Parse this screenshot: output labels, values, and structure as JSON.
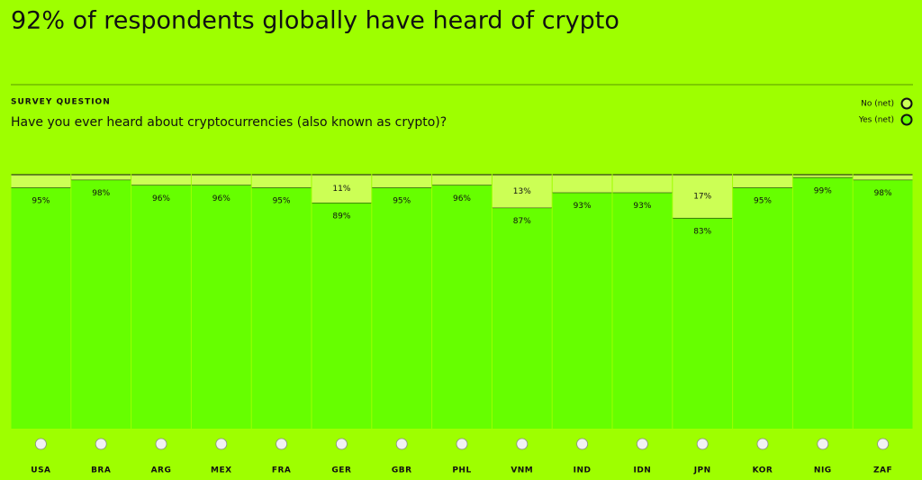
{
  "chart_data": {
    "type": "stacked_bar",
    "title": "92% of respondents globally have heard of crypto",
    "section_label": "SURVEY QUESTION",
    "subtitle": "Have you ever heard about cryptocurrencies (also known as crypto)?",
    "categories": [
      "USA",
      "BRA",
      "ARG",
      "MEX",
      "FRA",
      "GER",
      "GBR",
      "PHL",
      "VNM",
      "IND",
      "IDN",
      "JPN",
      "KOR",
      "NIG",
      "ZAF"
    ],
    "series": [
      {
        "name": "Yes (net)",
        "color": "#66ff00",
        "values": [
          95,
          98,
          96,
          96,
          95,
          89,
          95,
          96,
          87,
          93,
          93,
          83,
          95,
          99,
          98
        ],
        "value_labels": [
          "95%",
          "98%",
          "96%",
          "96%",
          "95%",
          "89%",
          "95%",
          "96%",
          "87%",
          "93%",
          "93%",
          "83%",
          "95%",
          "99%",
          "98%"
        ]
      },
      {
        "name": "No (net)",
        "color": "#ccff55",
        "values": [
          5,
          2,
          4,
          4,
          5,
          11,
          5,
          4,
          13,
          7,
          7,
          17,
          5,
          1,
          2
        ],
        "value_labels": [
          null,
          null,
          null,
          null,
          null,
          "11%",
          null,
          null,
          "13%",
          null,
          null,
          "17%",
          null,
          null,
          null
        ]
      }
    ],
    "ylim": [
      0,
      100
    ]
  }
}
